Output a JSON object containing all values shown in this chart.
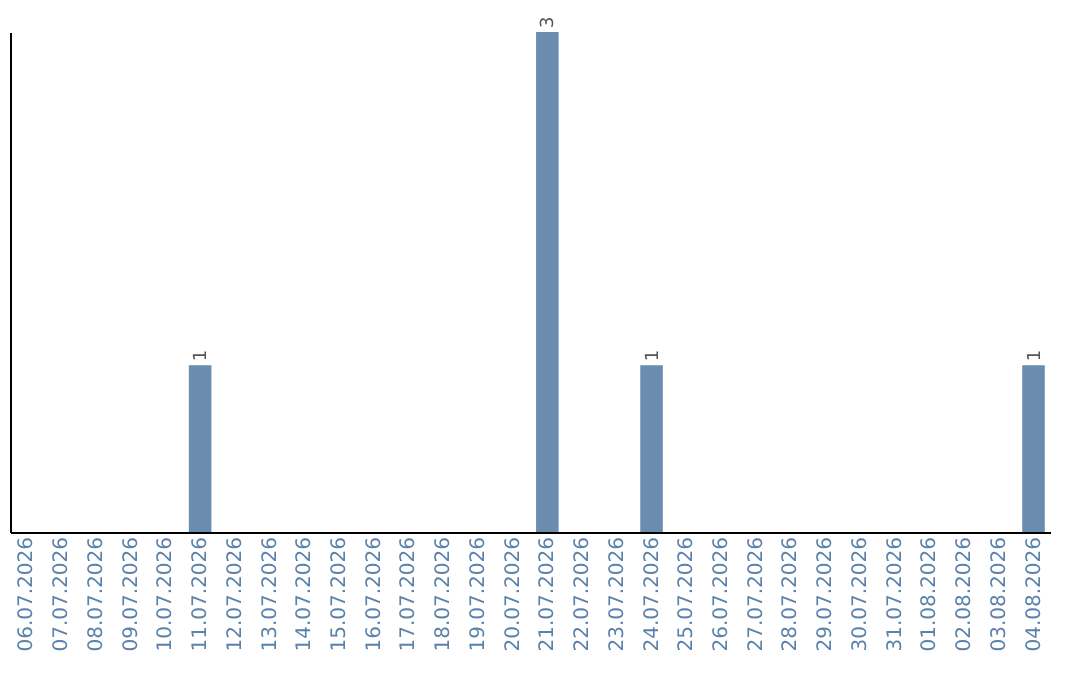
{
  "chart_data": {
    "type": "bar",
    "categories": [
      "06.07.2026",
      "07.07.2026",
      "08.07.2026",
      "09.07.2026",
      "10.07.2026",
      "11.07.2026",
      "12.07.2026",
      "13.07.2026",
      "14.07.2026",
      "15.07.2026",
      "16.07.2026",
      "17.07.2026",
      "18.07.2026",
      "19.07.2026",
      "20.07.2026",
      "21.07.2026",
      "22.07.2026",
      "23.07.2026",
      "24.07.2026",
      "25.07.2026",
      "26.07.2026",
      "27.07.2026",
      "28.07.2026",
      "29.07.2026",
      "30.07.2026",
      "31.07.2026",
      "01.08.2026",
      "02.08.2026",
      "03.08.2026",
      "04.08.2026"
    ],
    "values": [
      0,
      0,
      0,
      0,
      0,
      1,
      0,
      0,
      0,
      0,
      0,
      0,
      0,
      0,
      0,
      3,
      0,
      0,
      1,
      0,
      0,
      0,
      0,
      0,
      0,
      0,
      0,
      0,
      0,
      1
    ],
    "value_labels": [
      null,
      null,
      null,
      null,
      null,
      "1",
      null,
      null,
      null,
      null,
      null,
      null,
      null,
      null,
      null,
      "3",
      null,
      null,
      "1",
      null,
      null,
      null,
      null,
      null,
      null,
      null,
      null,
      null,
      null,
      "1"
    ],
    "color": "#6a8caf",
    "tick_labels": "x",
    "grid": false
  }
}
